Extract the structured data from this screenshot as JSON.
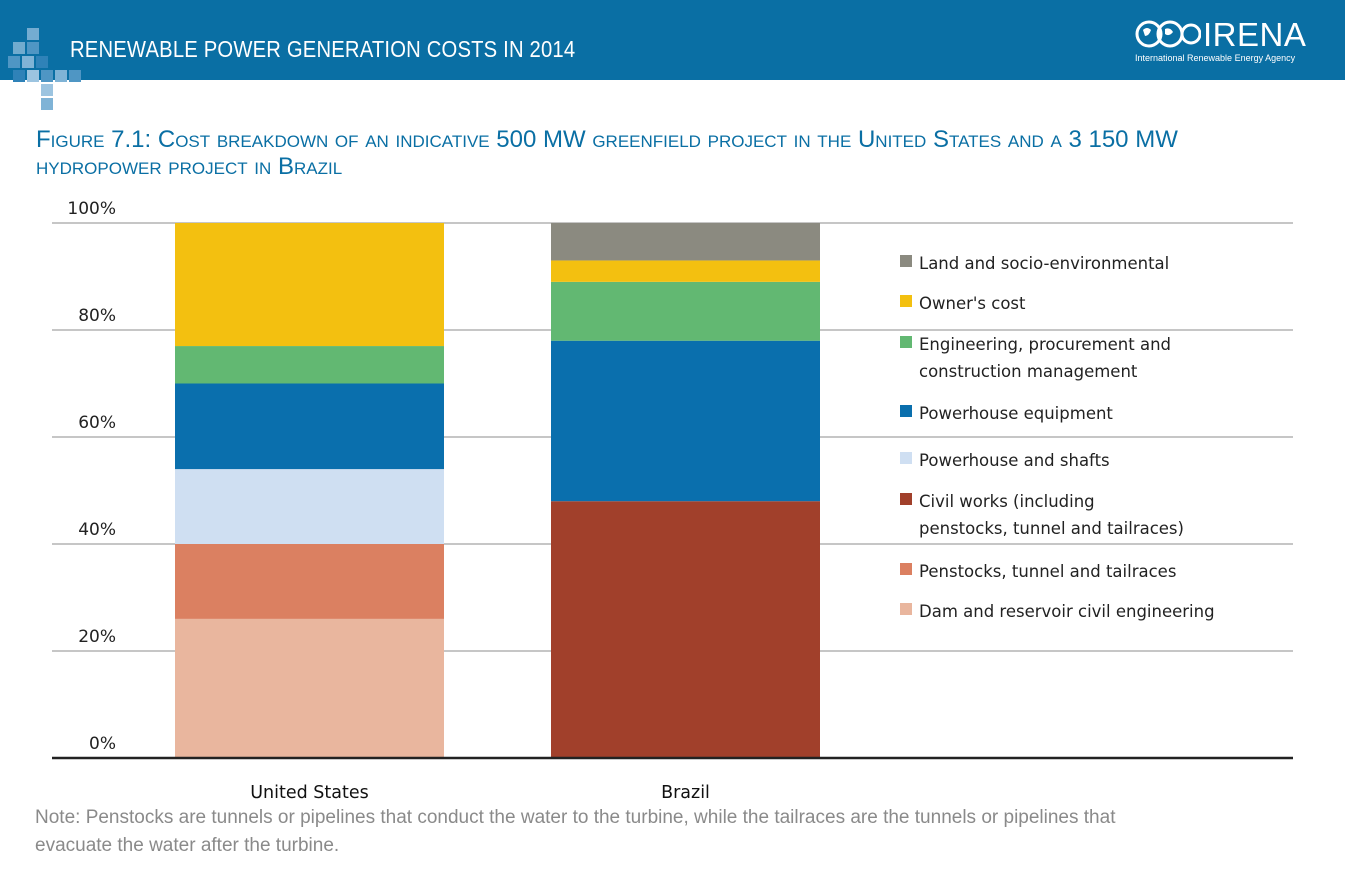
{
  "header": {
    "title": "RENEWABLE POWER GENERATION COSTS IN 2014",
    "logo_name": "IRENA",
    "logo_sub": "International Renewable Energy Agency"
  },
  "figure": {
    "title_line1": "Figure 7.1: Cost breakdown of an indicative 500 MW greenfield project in the United States and a 3 150 MW",
    "title_line2": "hydropower project in Brazil",
    "note_line1": "Note: Penstocks are tunnels or pipelines that conduct the water to the turbine, while the tailraces are the tunnels or pipelines that",
    "note_line2": "evacuate the water after the turbine."
  },
  "chart_data": {
    "type": "bar",
    "stacked": true,
    "categories": [
      "United States",
      "Brazil"
    ],
    "y_tick_labels": [
      "0%",
      "20%",
      "40%",
      "60%",
      "80%",
      "100%"
    ],
    "ylim": [
      0,
      100
    ],
    "grid": true,
    "legend_position": "right",
    "series": [
      {
        "name": "Dam and reservoir civil engineering",
        "color": "#e9b69e",
        "values": [
          26,
          0
        ]
      },
      {
        "name": "Penstocks, tunnel and tailraces",
        "color": "#db8061",
        "values": [
          14,
          0
        ]
      },
      {
        "name": "Civil works (including penstocks, tunnel and tailraces)",
        "color": "#a1402b",
        "values": [
          0,
          48
        ]
      },
      {
        "name": "Powerhouse and shafts",
        "color": "#cfdff2",
        "values": [
          14,
          0
        ]
      },
      {
        "name": "Powerhouse equipment",
        "color": "#0a6fad",
        "values": [
          16,
          30
        ]
      },
      {
        "name": "Engineering, procurement and construction management",
        "color": "#62b872",
        "values": [
          7,
          11
        ]
      },
      {
        "name": "Owner's cost",
        "color": "#f3c010",
        "values": [
          23,
          4
        ]
      },
      {
        "name": "Land and socio-environmental",
        "color": "#8b8a80",
        "values": [
          0,
          7
        ]
      }
    ],
    "legend": [
      {
        "line1": "Land and socio-environmental",
        "line2": "",
        "color": "#8b8a80"
      },
      {
        "line1": "Owner's cost",
        "line2": "",
        "color": "#f3c010"
      },
      {
        "line1": "Engineering, procurement and",
        "line2": "construction management",
        "color": "#62b872"
      },
      {
        "line1": "Powerhouse equipment",
        "line2": "",
        "color": "#0a6fad"
      },
      {
        "line1": "Powerhouse and shafts",
        "line2": "",
        "color": "#cfdff2"
      },
      {
        "line1": "Civil works (including",
        "line2": "penstocks, tunnel and tailraces)",
        "color": "#a1402b"
      },
      {
        "line1": "Penstocks, tunnel and tailraces",
        "line2": "",
        "color": "#db8061"
      },
      {
        "line1": "Dam and reservoir civil engineering",
        "line2": "",
        "color": "#e9b69e"
      }
    ]
  }
}
